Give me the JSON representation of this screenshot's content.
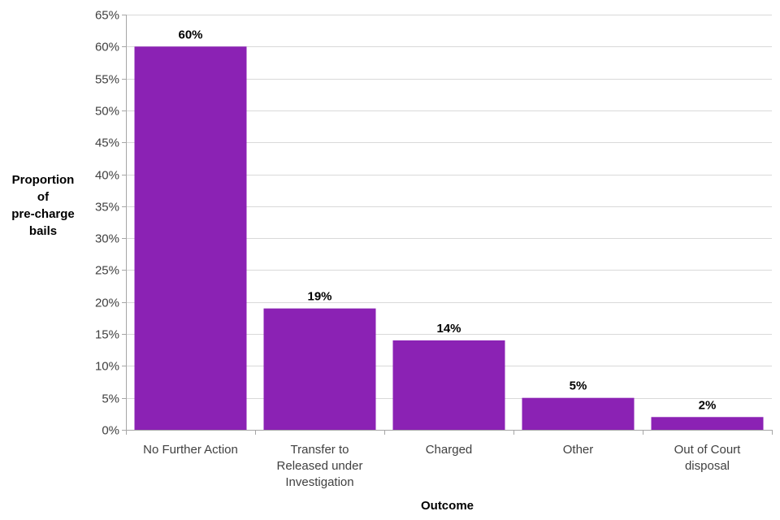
{
  "chart_data": {
    "type": "bar",
    "title": "",
    "xlabel": "Outcome",
    "ylabel_lines": [
      "Proportion",
      "of",
      "pre-charge",
      "bails"
    ],
    "categories": [
      [
        "No Further Action"
      ],
      [
        "Transfer to",
        "Released under",
        "Investigation"
      ],
      [
        "Charged"
      ],
      [
        "Other"
      ],
      [
        "Out of Court",
        "disposal"
      ]
    ],
    "values": [
      60,
      19,
      14,
      5,
      2
    ],
    "value_labels": [
      "60%",
      "19%",
      "14%",
      "5%",
      "2%"
    ],
    "ylim": [
      0,
      65
    ],
    "yticks": [
      0,
      5,
      10,
      15,
      20,
      25,
      30,
      35,
      40,
      45,
      50,
      55,
      60,
      65
    ],
    "ytick_labels": [
      "0%",
      "5%",
      "10%",
      "15%",
      "20%",
      "25%",
      "30%",
      "35%",
      "40%",
      "45%",
      "50%",
      "55%",
      "60%",
      "65%"
    ],
    "grid": true,
    "legend": "none",
    "bar_color": "#8B22B4",
    "grid_color": "#D9D9D9",
    "axis_color": "#A6A6A6"
  }
}
